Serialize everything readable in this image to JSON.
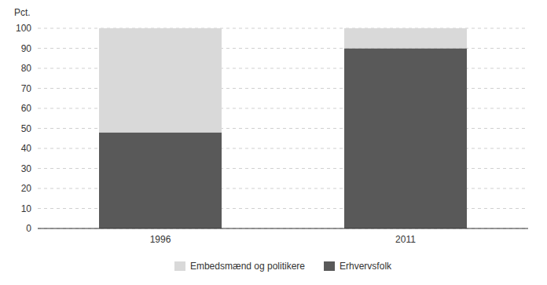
{
  "chart_data": {
    "type": "bar",
    "stacked": true,
    "ylabel": "Pct.",
    "categories": [
      "1996",
      "2011"
    ],
    "series": [
      {
        "name": "Erhvervsfolk",
        "color": "#595959",
        "values": [
          48,
          90
        ]
      },
      {
        "name": "Embedsmænd og politikere",
        "color": "#d9d9d9",
        "values": [
          52,
          10
        ]
      }
    ],
    "ylim": [
      0,
      100
    ],
    "yticks": [
      0,
      10,
      20,
      30,
      40,
      50,
      60,
      70,
      80,
      90,
      100
    ],
    "grid": true,
    "legend": "bottom"
  }
}
